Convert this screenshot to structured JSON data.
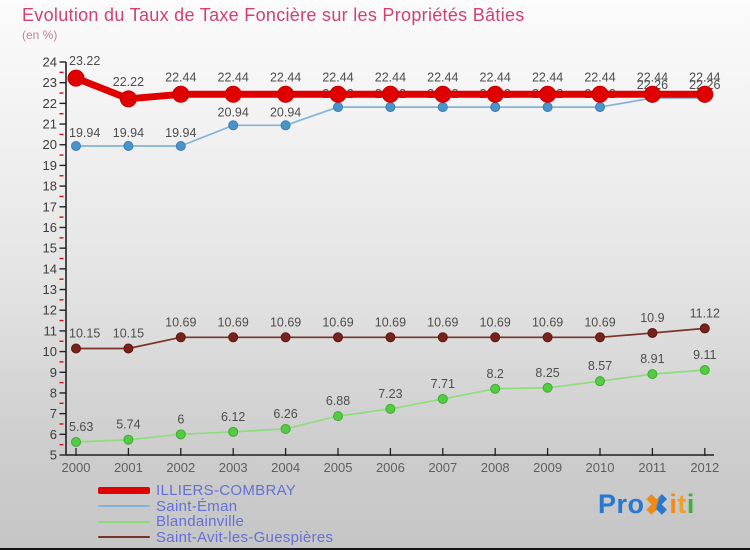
{
  "header": {
    "title": "Evolution du Taux de Taxe Foncière sur les Propriétés Bâties",
    "subtitle": "(en %)"
  },
  "chart_data": {
    "type": "line",
    "title": "Evolution du Taux de Taxe Foncière sur les Propriétés Bâties",
    "subtitle": "(en %)",
    "xlabel": "",
    "ylabel": "",
    "x": [
      2000,
      2001,
      2002,
      2003,
      2004,
      2005,
      2006,
      2007,
      2008,
      2009,
      2010,
      2011,
      2012
    ],
    "ylim": [
      5,
      24
    ],
    "ytick_step": 1,
    "minor_tick_step": 0.5,
    "grid": false,
    "legend_position": "bottom-left",
    "axis_color": "#222222",
    "minor_tick_color": "#cc1111",
    "ytick_label_color": "#3c3c3c",
    "xtick_label_color": "#5e5e5e",
    "data_label_color": "#4d4d4d",
    "series": [
      {
        "name": "ILLIERS-COMBRAY",
        "color": "#e00000",
        "marker_color": "#e00000",
        "marker_stroke": "#c40000",
        "line_width": 7,
        "marker_radius": 8,
        "label_offset": -13,
        "values": [
          23.22,
          22.22,
          22.44,
          22.44,
          22.44,
          22.44,
          22.44,
          22.44,
          22.44,
          22.44,
          22.44,
          22.44,
          22.44
        ]
      },
      {
        "name": "Saint-Éman",
        "color": "#85b3d6",
        "marker_color": "#4a94cc",
        "marker_stroke": "#3d7db2",
        "line_width": 1.7,
        "marker_radius": 4.5,
        "label_offset": -9,
        "values": [
          19.94,
          19.94,
          19.94,
          20.94,
          20.94,
          21.82,
          21.82,
          21.82,
          21.82,
          21.82,
          21.82,
          22.26,
          22.26
        ]
      },
      {
        "name": "Blandainville",
        "color": "#8edc7c",
        "marker_color": "#52cc41",
        "marker_stroke": "#42a834",
        "line_width": 1.7,
        "marker_radius": 4.5,
        "label_offset": -11,
        "values": [
          5.63,
          5.74,
          6,
          6.12,
          6.26,
          6.88,
          7.23,
          7.71,
          8.2,
          8.25,
          8.57,
          8.91,
          9.11
        ]
      },
      {
        "name": "Saint-Avit-les-Guespières",
        "color": "#7a332b",
        "marker_color": "#77221a",
        "marker_stroke": "#5c1912",
        "line_width": 1.7,
        "marker_radius": 4.5,
        "label_offset": -11,
        "values": [
          10.15,
          10.15,
          10.69,
          10.69,
          10.69,
          10.69,
          10.69,
          10.69,
          10.69,
          10.69,
          10.69,
          10.9,
          11.12
        ]
      }
    ],
    "draw_order": [
      1,
      2,
      3,
      0
    ]
  },
  "legend": {
    "text_color": "#6470d6",
    "items": [
      "ILLIERS-COMBRAY",
      "Saint-Éman",
      "Blandainville",
      "Saint-Avit-les-Guespières"
    ]
  },
  "logo": {
    "part_pro": "Pro",
    "part_x": "✖",
    "part_i1": "i",
    "part_t": "t",
    "part_i2": "i",
    "color_blue": "#2878d0",
    "color_orange": "#f28a18",
    "color_green": "#3fae3b"
  }
}
